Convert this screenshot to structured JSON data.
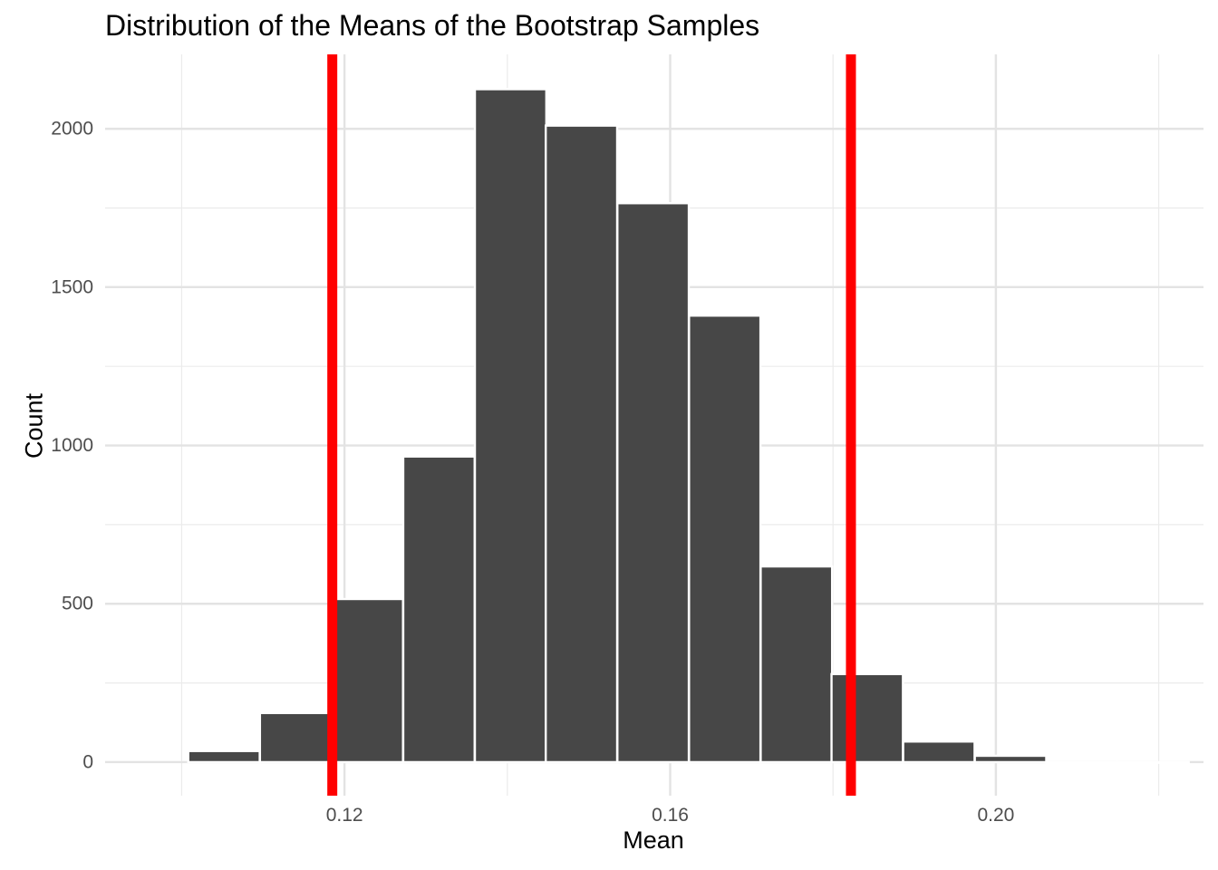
{
  "chart_data": {
    "type": "bar",
    "title": "Distribution of the Means of the Bootstrap Samples",
    "xlabel": "Mean",
    "ylabel": "Count",
    "bins": [
      {
        "x": 0.1052,
        "count": 35
      },
      {
        "x": 0.114,
        "count": 155
      },
      {
        "x": 0.1228,
        "count": 515
      },
      {
        "x": 0.1316,
        "count": 965
      },
      {
        "x": 0.1404,
        "count": 2125
      },
      {
        "x": 0.1491,
        "count": 2010
      },
      {
        "x": 0.1579,
        "count": 1765
      },
      {
        "x": 0.1667,
        "count": 1410
      },
      {
        "x": 0.1755,
        "count": 618
      },
      {
        "x": 0.1842,
        "count": 278
      },
      {
        "x": 0.193,
        "count": 65
      },
      {
        "x": 0.2018,
        "count": 20
      },
      {
        "x": 0.2106,
        "count": 0
      },
      {
        "x": 0.2193,
        "count": 0
      }
    ],
    "bin_width": 0.00877,
    "vlines": [
      0.1185,
      0.1822
    ],
    "vline_color": "#ff0000",
    "bar_color": "#474747",
    "bar_border_color": "#ffffff",
    "xlim": [
      0.0906,
      0.2255
    ],
    "ylim": [
      -106,
      2235
    ],
    "xticks": [
      0.12,
      0.16,
      0.2
    ],
    "xtick_labels": [
      "0.12",
      "0.16",
      "0.20"
    ],
    "xminor": [
      0.1,
      0.14,
      0.18,
      0.22
    ],
    "yticks": [
      0,
      500,
      1000,
      1500,
      2000
    ],
    "ytick_labels": [
      "0",
      "500",
      "1000",
      "1500",
      "2000"
    ],
    "yminor": [
      250,
      750,
      1250,
      1750
    ],
    "grid": true
  }
}
